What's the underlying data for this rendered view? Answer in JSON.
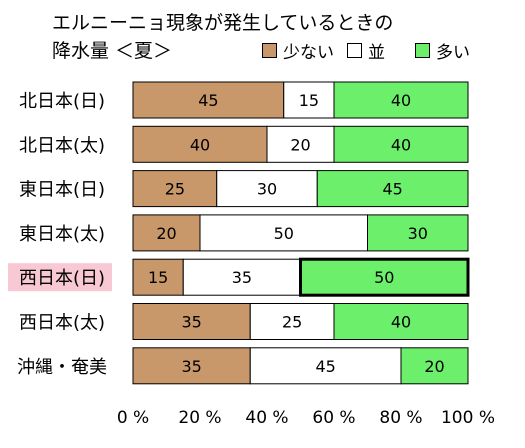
{
  "chart_data": {
    "type": "bar",
    "orientation": "horizontal",
    "stacked": true,
    "title_lines": [
      "エルニーニョ現象が発生しているときの",
      "降水量 ＜夏＞"
    ],
    "categories": [
      "北日本(日)",
      "北日本(太)",
      "東日本(日)",
      "東日本(太)",
      "西日本(日)",
      "西日本(太)",
      "沖縄・奄美"
    ],
    "series": [
      {
        "name": "少ない",
        "color": "#c8976a",
        "values": [
          45,
          40,
          25,
          20,
          15,
          35,
          35
        ]
      },
      {
        "name": "並",
        "color": "#ffffff",
        "values": [
          15,
          20,
          30,
          50,
          35,
          25,
          45
        ]
      },
      {
        "name": "多い",
        "color": "#6cf06c",
        "values": [
          40,
          40,
          45,
          30,
          50,
          40,
          20
        ]
      }
    ],
    "xlim": [
      0,
      100
    ],
    "x_ticks": [
      "0 %",
      "20 %",
      "40 %",
      "60 %",
      "80 %",
      "100 %"
    ],
    "legend_position": "top",
    "highlight": {
      "category": "西日本(日)",
      "series": "多い",
      "label_background": "#f8c8d4"
    }
  }
}
